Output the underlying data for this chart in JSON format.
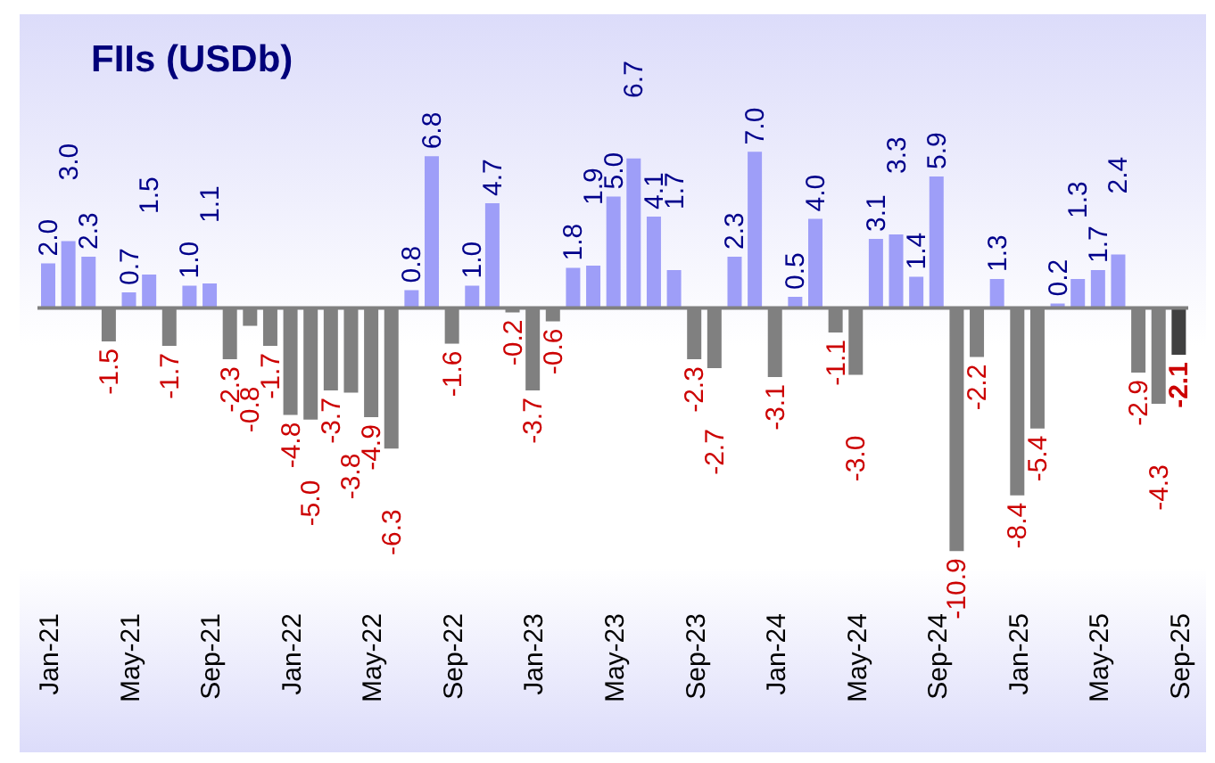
{
  "chart_data": {
    "type": "bar",
    "title": "FIIs (USDb)",
    "categories": [
      "Jan-21",
      null,
      null,
      null,
      "May-21",
      null,
      null,
      null,
      "Sep-21",
      null,
      null,
      null,
      "Jan-22",
      null,
      null,
      null,
      "May-22",
      null,
      null,
      null,
      "Sep-22",
      null,
      null,
      null,
      "Jan-23",
      null,
      null,
      null,
      "May-23",
      null,
      null,
      null,
      "Sep-23",
      null,
      null,
      null,
      "Jan-24",
      null,
      null,
      null,
      "May-24",
      null,
      null,
      null,
      "Sep-24",
      null,
      null,
      null,
      "Jan-25",
      null,
      null,
      null,
      "May-25",
      null,
      null,
      null,
      "Sep-25"
    ],
    "values": [
      2.0,
      3.0,
      2.3,
      -1.5,
      0.7,
      1.5,
      -1.7,
      1.0,
      1.1,
      -2.3,
      -0.8,
      -1.7,
      -4.8,
      -5.0,
      -3.7,
      -3.8,
      -4.9,
      -6.3,
      0.8,
      6.8,
      -1.6,
      1.0,
      4.7,
      -0.2,
      -3.7,
      -0.6,
      1.8,
      1.9,
      5.0,
      6.7,
      4.1,
      1.7,
      -2.3,
      -2.7,
      2.3,
      7.0,
      -3.1,
      0.5,
      4.0,
      -1.1,
      -3.0,
      3.1,
      3.3,
      1.4,
      5.9,
      -10.9,
      -2.2,
      1.3,
      -8.4,
      -5.4,
      0.2,
      1.3,
      1.7,
      2.4,
      -2.9,
      -4.3,
      -2.1
    ],
    "colors": [
      "#9e9ef8",
      "#9e9ef8",
      "#9e9ef8",
      "#808080",
      "#9e9ef8",
      "#9e9ef8",
      "#808080",
      "#9e9ef8",
      "#9e9ef8",
      "#808080",
      "#808080",
      "#808080",
      "#808080",
      "#808080",
      "#808080",
      "#808080",
      "#808080",
      "#808080",
      "#9e9ef8",
      "#9e9ef8",
      "#808080",
      "#9e9ef8",
      "#9e9ef8",
      "#808080",
      "#808080",
      "#808080",
      "#9e9ef8",
      "#9e9ef8",
      "#9e9ef8",
      "#9e9ef8",
      "#9e9ef8",
      "#9e9ef8",
      "#808080",
      "#808080",
      "#9e9ef8",
      "#9e9ef8",
      "#808080",
      "#9e9ef8",
      "#9e9ef8",
      "#808080",
      "#808080",
      "#9e9ef8",
      "#9e9ef8",
      "#9e9ef8",
      "#9e9ef8",
      "#808080",
      "#808080",
      "#9e9ef8",
      "#808080",
      "#808080",
      "#9e9ef8",
      "#9e9ef8",
      "#9e9ef8",
      "#9e9ef8",
      "#808080",
      "#808080",
      "#404040"
    ],
    "value_labels": [
      "2.0",
      "3.0",
      "2.3",
      "-1.5",
      "0.7",
      "1.5",
      "-1.7",
      "1.0",
      "1.1",
      "-2.3",
      "-0.8",
      "-1.7",
      "-4.8",
      "-5.0",
      "-3.7",
      "-3.8",
      "-4.9",
      "-6.3",
      "0.8",
      "6.8",
      "-1.6",
      "1.0",
      "4.7",
      "-0.2",
      "-3.7",
      "-0.6",
      "1.8",
      "1.9",
      "5.0",
      "6.7",
      "4.1",
      "1.7",
      "-2.3",
      "-2.7",
      "2.3",
      "7.0",
      "-3.1",
      "0.5",
      "4.0",
      "-1.1",
      "-3.0",
      "3.1",
      "3.3",
      "1.4",
      "5.9",
      "-10.9",
      "-2.2",
      "1.3",
      "-8.4",
      "-5.4",
      "0.2",
      "1.3",
      "1.7",
      "2.4",
      "-2.9",
      "-4.3",
      "-2.1"
    ],
    "tick_labels": "x"
  }
}
